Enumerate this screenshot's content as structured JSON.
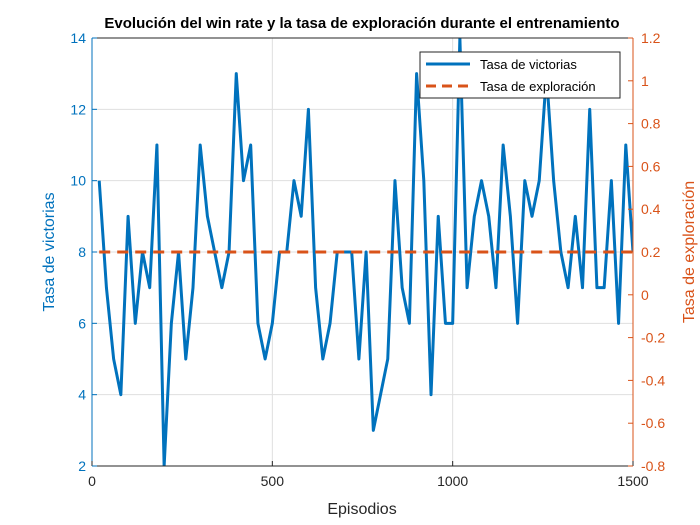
{
  "chart_data": {
    "type": "line",
    "title": "Evolución del win rate y la tasa de exploración durante el entrenamiento",
    "xlabel": "Episodios",
    "ylabel_left": "Tasa de victorias",
    "ylabel_right": "Tasa de exploración",
    "xlim": [
      0,
      1500
    ],
    "ylim_left": [
      2,
      14
    ],
    "ylim_right": [
      -0.8,
      1.2
    ],
    "x_ticks": [
      "0",
      "500",
      "1000",
      "1500"
    ],
    "y_left_ticks": [
      "2",
      "4",
      "6",
      "8",
      "10",
      "12",
      "14"
    ],
    "y_right_ticks": [
      "-0.8",
      "-0.6",
      "-0.4",
      "-0.2",
      "0",
      "0.2",
      "0.4",
      "0.6",
      "0.8",
      "1",
      "1.2"
    ],
    "grid": true,
    "legend_position": "top-right",
    "colors": {
      "win": "#0072BD",
      "explore": "#D95319",
      "axis_bottom": "#262626"
    },
    "series": [
      {
        "name": "Tasa de victorias",
        "axis": "left",
        "style": "solid",
        "x": [
          20,
          40,
          60,
          80,
          100,
          120,
          140,
          160,
          180,
          200,
          220,
          240,
          260,
          280,
          300,
          320,
          340,
          360,
          380,
          400,
          420,
          440,
          460,
          480,
          500,
          520,
          540,
          560,
          580,
          600,
          620,
          640,
          660,
          680,
          700,
          720,
          740,
          760,
          780,
          800,
          820,
          840,
          860,
          880,
          900,
          920,
          940,
          960,
          980,
          1000,
          1020,
          1040,
          1060,
          1080,
          1100,
          1120,
          1140,
          1160,
          1180,
          1200,
          1220,
          1240,
          1260,
          1280,
          1300,
          1320,
          1340,
          1360,
          1380,
          1400,
          1420,
          1440,
          1460,
          1480,
          1500
        ],
        "values": [
          10,
          7,
          5,
          4,
          9,
          6,
          8,
          7,
          11,
          2,
          6,
          8,
          5,
          7,
          11,
          9,
          8,
          7,
          8,
          13,
          10,
          11,
          6,
          5,
          6,
          8,
          8,
          10,
          9,
          12,
          7,
          5,
          6,
          8,
          8,
          8,
          5,
          8,
          3,
          4,
          5,
          10,
          7,
          6,
          13,
          10,
          4,
          9,
          6,
          6,
          14,
          7,
          9,
          10,
          9,
          7,
          11,
          9,
          6,
          10,
          9,
          10,
          13,
          10,
          8,
          7,
          9,
          7,
          12,
          7,
          7,
          10,
          6,
          11,
          8
        ]
      },
      {
        "name": "Tasa de exploración",
        "axis": "right",
        "style": "dashed",
        "x": [
          20,
          1500
        ],
        "values": [
          0.2,
          0.2
        ]
      }
    ]
  }
}
